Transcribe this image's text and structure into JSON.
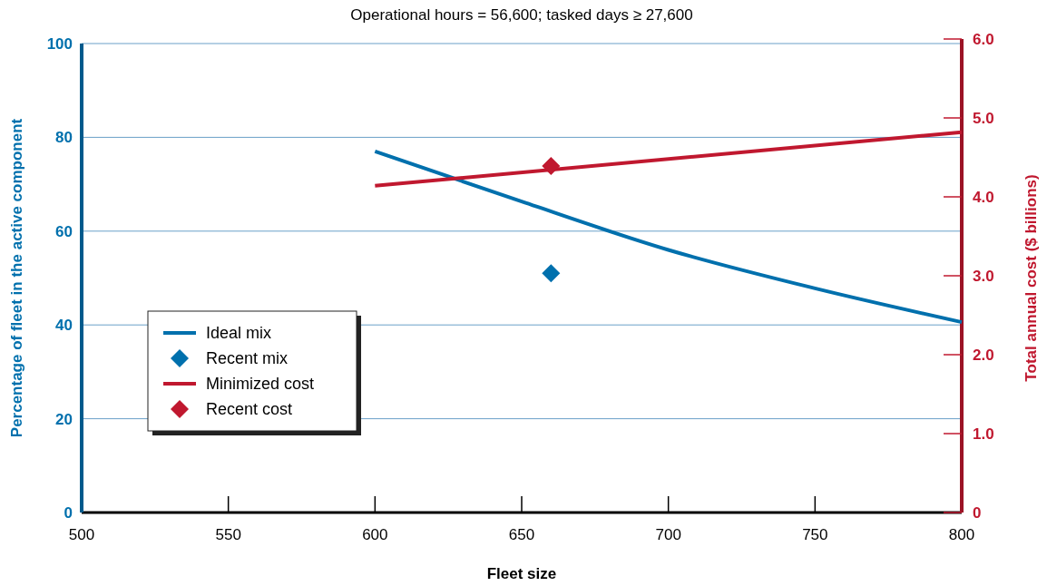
{
  "chart_data": {
    "type": "line",
    "title": "Operational hours = 56,600; tasked days ≥ 27,600",
    "xlabel": "Fleet size",
    "ylabel": "Percentage of fleet in the active component",
    "y2label": "Total annual cost ($ billions)",
    "xlim": [
      500,
      800
    ],
    "xticks": [
      500,
      550,
      600,
      650,
      700,
      750,
      800
    ],
    "ylim": [
      0,
      100
    ],
    "yticks": [
      0,
      20,
      40,
      60,
      80,
      100
    ],
    "y2lim": [
      0,
      6
    ],
    "y2ticks": [
      {
        "value": 0,
        "label": "0"
      },
      {
        "value": 1,
        "label": "1.0"
      },
      {
        "value": 2,
        "label": "2.0"
      },
      {
        "value": 3,
        "label": "3.0"
      },
      {
        "value": 4,
        "label": "4.0"
      },
      {
        "value": 5,
        "label": "5.0"
      },
      {
        "value": 6,
        "label": "6.0"
      }
    ],
    "grid": "y",
    "legend": "left",
    "series": [
      {
        "name": "Ideal mix",
        "type": "line",
        "color": "#0070ad",
        "x": [
          600,
          650,
          700,
          750,
          800
        ],
        "values": [
          77,
          66.3,
          56,
          47.8,
          40.6
        ]
      },
      {
        "name": "Recent mix",
        "type": "scatter",
        "marker": "diamond",
        "color": "#0070ad",
        "x": [
          660
        ],
        "values": [
          51
        ]
      },
      {
        "name": "Minimized cost",
        "type": "line",
        "axis": "y2",
        "color": "#c0182f",
        "x": [
          600,
          800
        ],
        "values": [
          4.14,
          4.82
        ]
      },
      {
        "name": "Recent cost",
        "type": "scatter",
        "marker": "diamond",
        "axis": "y2",
        "color": "#c0182f",
        "x": [
          660
        ],
        "values": [
          4.39
        ]
      }
    ]
  }
}
